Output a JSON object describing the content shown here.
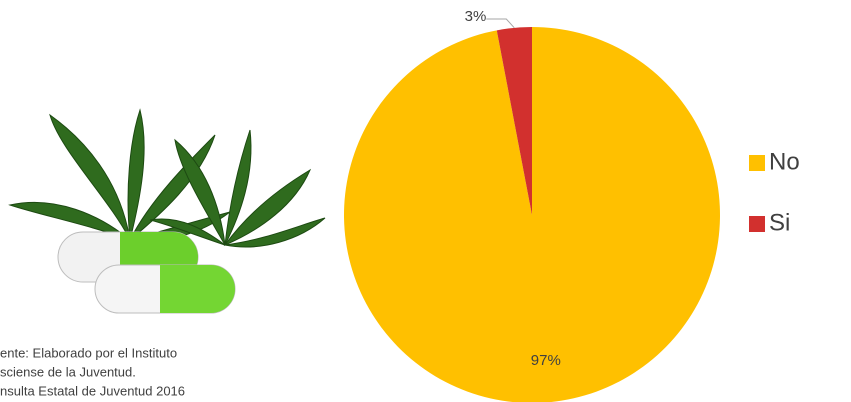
{
  "chart_data": {
    "type": "pie",
    "categories": [
      "No",
      "Si"
    ],
    "values": [
      97,
      3
    ],
    "value_labels": [
      "97%",
      "3%"
    ],
    "colors": [
      "#FFC000",
      "#D2302E"
    ],
    "legend": "right"
  },
  "source_lines": [
    "ente: Elaborado por el Instituto",
    "sciense de la Juventud.",
    "nsulta Estatal de Juventud 2016"
  ]
}
